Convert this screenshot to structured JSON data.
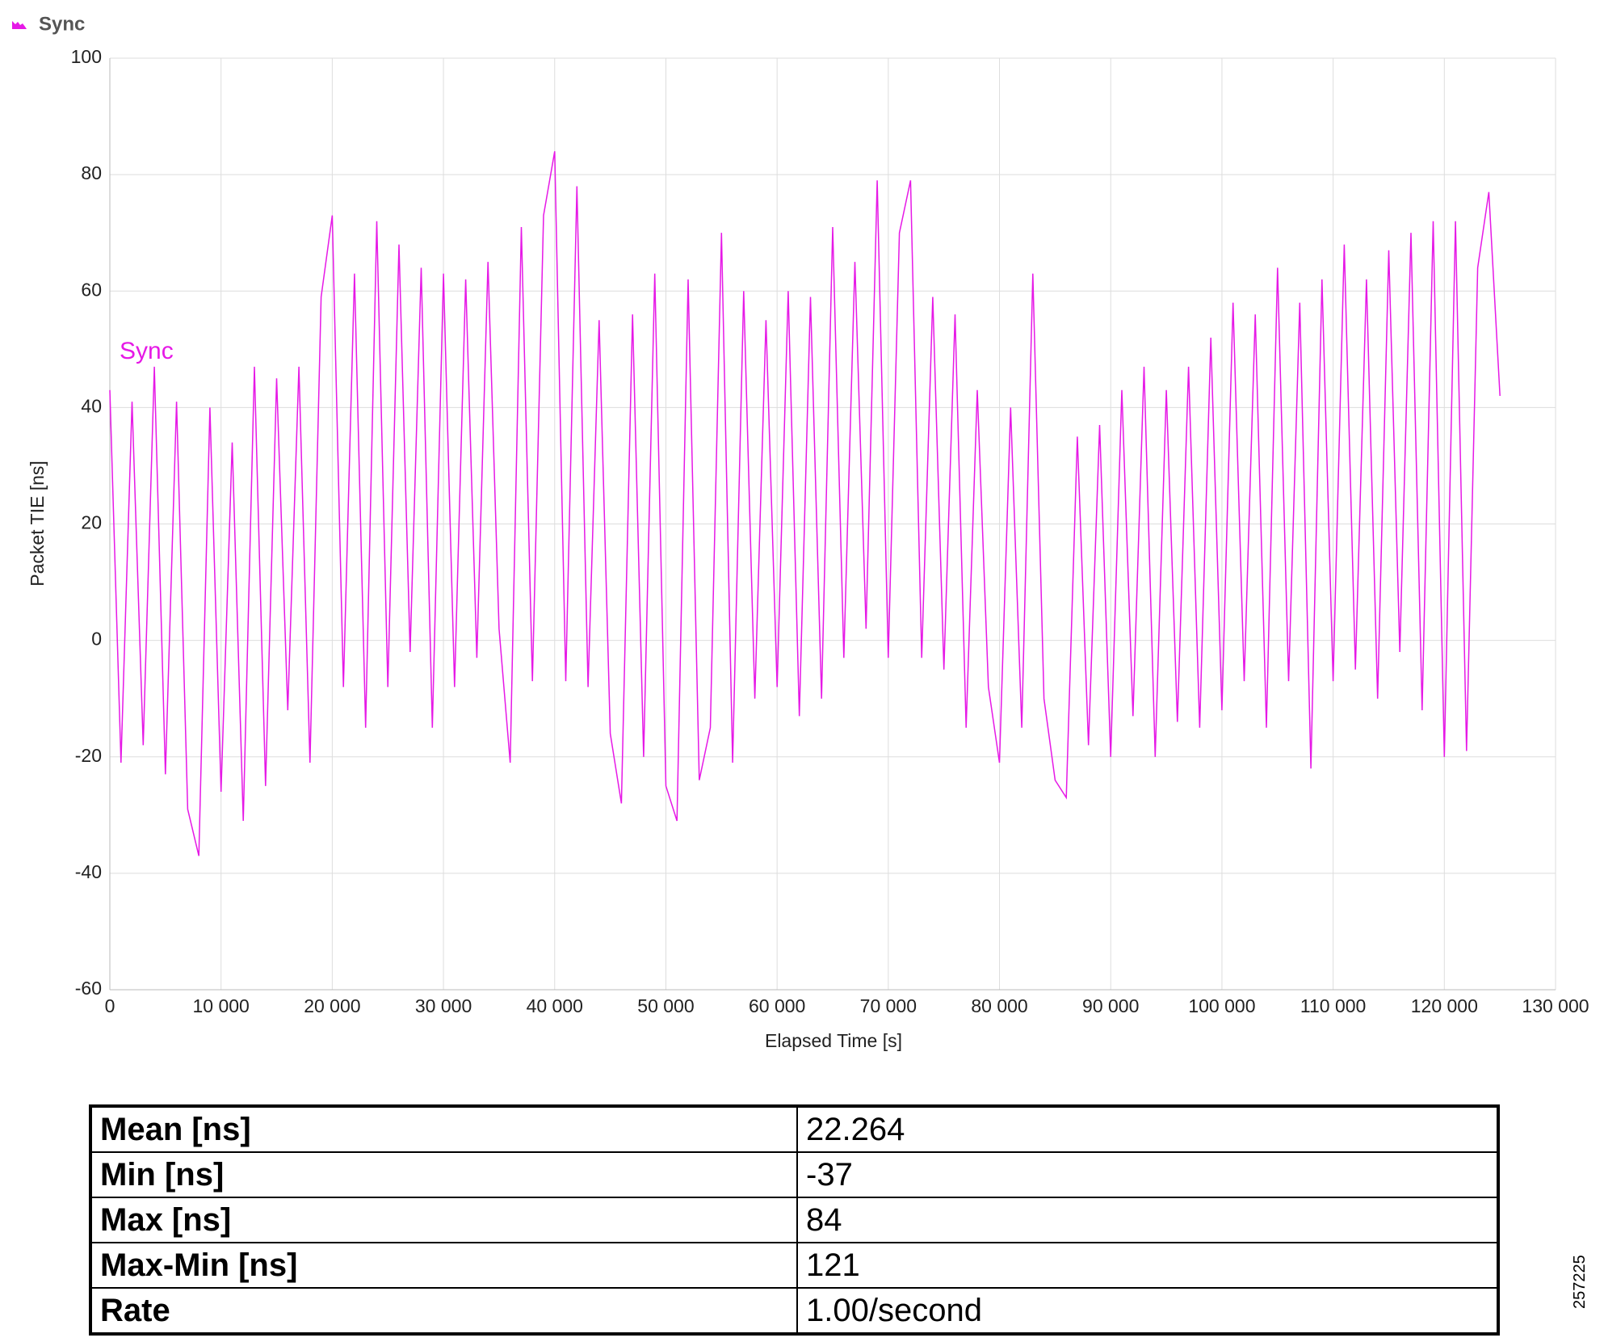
{
  "chart_data": {
    "type": "line",
    "legend_title": "Sync",
    "xlabel": "Elapsed Time [s]",
    "ylabel": "Packet TIE [ns]",
    "series": [
      {
        "name": "Sync",
        "color": "#e619e6",
        "x": [
          0,
          1000,
          2000,
          3000,
          4000,
          5000,
          6000,
          7000,
          8000,
          9000,
          10000,
          11000,
          12000,
          13000,
          14000,
          15000,
          16000,
          17000,
          18000,
          19000,
          20000,
          21000,
          22000,
          23000,
          24000,
          25000,
          26000,
          27000,
          28000,
          29000,
          30000,
          31000,
          32000,
          33000,
          34000,
          35000,
          36000,
          37000,
          38000,
          39000,
          40000,
          41000,
          42000,
          43000,
          44000,
          45000,
          46000,
          47000,
          48000,
          49000,
          50000,
          51000,
          52000,
          53000,
          54000,
          55000,
          56000,
          57000,
          58000,
          59000,
          60000,
          61000,
          62000,
          63000,
          64000,
          65000,
          66000,
          67000,
          68000,
          69000,
          70000,
          71000,
          72000,
          73000,
          74000,
          75000,
          76000,
          77000,
          78000,
          79000,
          80000,
          81000,
          82000,
          83000,
          84000,
          85000,
          86000,
          87000,
          88000,
          89000,
          90000,
          91000,
          92000,
          93000,
          94000,
          95000,
          96000,
          97000,
          98000,
          99000,
          100000,
          101000,
          102000,
          103000,
          104000,
          105000,
          106000,
          107000,
          108000,
          109000,
          110000,
          111000,
          112000,
          113000,
          114000,
          115000,
          116000,
          117000,
          118000,
          119000,
          120000,
          121000,
          122000,
          123000,
          124000,
          125000
        ],
        "values": [
          43,
          -21,
          41,
          -18,
          47,
          -23,
          41,
          -29,
          -37,
          40,
          -26,
          34,
          -31,
          47,
          -25,
          45,
          -12,
          47,
          -21,
          59,
          73,
          -8,
          63,
          -15,
          72,
          -8,
          68,
          -2,
          64,
          -15,
          63,
          -8,
          62,
          -3,
          65,
          2,
          -21,
          71,
          -7,
          73,
          84,
          -7,
          78,
          -8,
          55,
          -16,
          -28,
          56,
          -20,
          63,
          -25,
          -31,
          62,
          -24,
          -15,
          70,
          -21,
          60,
          -10,
          55,
          -8,
          60,
          -13,
          59,
          -10,
          71,
          -3,
          65,
          2,
          79,
          -3,
          70,
          79,
          -3,
          59,
          -5,
          56,
          -15,
          43,
          -8,
          -21,
          40,
          -15,
          63,
          -10,
          -24,
          -27,
          35,
          -18,
          37,
          -20,
          43,
          -13,
          47,
          -20,
          43,
          -14,
          47,
          -15,
          52,
          -12,
          58,
          -7,
          56,
          -15,
          64,
          -7,
          58,
          -22,
          62,
          -7,
          68,
          -5,
          62,
          -10,
          67,
          -2,
          70,
          -12,
          72,
          -20,
          72,
          -19,
          64,
          77,
          42
        ]
      }
    ],
    "xlim": [
      0,
      130000
    ],
    "xticks": [
      0,
      {
        "value": 10000,
        "label": "10 000"
      },
      {
        "value": 20000,
        "label": "20 000"
      },
      {
        "value": 30000,
        "label": "30 000"
      },
      {
        "value": 40000,
        "label": "40 000"
      },
      {
        "value": 50000,
        "label": "50 000"
      },
      {
        "value": 60000,
        "label": "60 000"
      },
      {
        "value": 70000,
        "label": "70 000"
      },
      {
        "value": 80000,
        "label": "80 000"
      },
      {
        "value": 90000,
        "label": "90 000"
      },
      {
        "value": 100000,
        "label": "100 000"
      },
      {
        "value": 110000,
        "label": "110 000"
      },
      {
        "value": 120000,
        "label": "120 000"
      },
      {
        "value": 130000,
        "label": "130 000"
      }
    ],
    "ylim": [
      -60,
      100
    ],
    "yticks": [
      -60,
      -40,
      -20,
      0,
      20,
      40,
      60,
      80,
      100
    ],
    "grid": true
  },
  "table": {
    "rows": [
      [
        "Mean [ns]",
        "22.264"
      ],
      [
        "Min [ns]",
        "-37"
      ],
      [
        "Max [ns]",
        "84"
      ],
      [
        "Max-Min [ns]",
        "121"
      ],
      [
        "Rate",
        "1.00/second"
      ]
    ]
  },
  "figure_id": "257225"
}
